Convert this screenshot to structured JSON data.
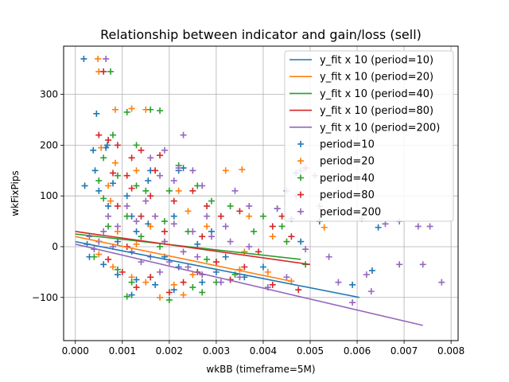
{
  "chart_data": {
    "type": "scatter",
    "title": "Relationship between indicator and gain/loss (sell)",
    "xlabel": "wkBB (timeframe=5M)",
    "ylabel": "wkFixPips",
    "xlim": [
      -0.00025,
      0.00815
    ],
    "ylim": [
      -185,
      395
    ],
    "xticks": [
      0.0,
      0.001,
      0.002,
      0.003,
      0.004,
      0.005,
      0.006,
      0.007,
      0.008
    ],
    "xtick_labels": [
      "0.000",
      "0.001",
      "0.002",
      "0.003",
      "0.004",
      "0.005",
      "0.006",
      "0.007",
      "0.008"
    ],
    "yticks": [
      -100,
      0,
      100,
      200,
      300
    ],
    "ytick_labels": [
      "−100",
      "0",
      "100",
      "200",
      "300"
    ],
    "grid": true,
    "legend_position": "top-right",
    "fit_lines": [
      {
        "name": "y_fit x 10 (period=10)",
        "color": "#1f77b4",
        "x": [
          0.0,
          0.00605
        ],
        "y": [
          10,
          -100
        ]
      },
      {
        "name": "y_fit x 10 (period=20)",
        "color": "#ff7f0e",
        "x": [
          0.0,
          0.0046
        ],
        "y": [
          20,
          -68
        ]
      },
      {
        "name": "y_fit x 10 (period=40)",
        "color": "#2ca02c",
        "x": [
          0.0,
          0.0048
        ],
        "y": [
          25,
          -25
        ]
      },
      {
        "name": "y_fit x 10 (period=80)",
        "color": "#d62728",
        "x": [
          0.0,
          0.005
        ],
        "y": [
          30,
          -35
        ]
      },
      {
        "name": "y_fit x 10 (period=200)",
        "color": "#9467bd",
        "x": [
          0.0,
          0.0074
        ],
        "y": [
          5,
          -155
        ]
      }
    ],
    "scatter_series": [
      {
        "name": "period=10",
        "color": "#1f77b4",
        "points": [
          [
            0.00018,
            370
          ],
          [
            0.00045,
            262
          ],
          [
            0.00065,
            195
          ],
          [
            0.00068,
            200
          ],
          [
            0.00038,
            190
          ],
          [
            0.00042,
            150
          ],
          [
            0.0002,
            120
          ],
          [
            0.0005,
            110
          ],
          [
            0.0011,
            100
          ],
          [
            0.0007,
            80
          ],
          [
            0.0012,
            60
          ],
          [
            0.00155,
            45
          ],
          [
            0.0021,
            60
          ],
          [
            0.0022,
            150
          ],
          [
            0.0023,
            155
          ],
          [
            0.0013,
            30
          ],
          [
            0.0009,
            10
          ],
          [
            0.00025,
            5
          ],
          [
            0.0003,
            -20
          ],
          [
            0.0006,
            -35
          ],
          [
            0.0009,
            -55
          ],
          [
            0.0013,
            -65
          ],
          [
            0.0017,
            -75
          ],
          [
            0.0012,
            -95
          ],
          [
            0.0022,
            -40
          ],
          [
            0.0021,
            -85
          ],
          [
            0.0027,
            -70
          ],
          [
            0.003,
            -50
          ],
          [
            0.0032,
            -20
          ],
          [
            0.0036,
            -60
          ],
          [
            0.004,
            -40
          ],
          [
            0.0043,
            75
          ],
          [
            0.0046,
            55
          ],
          [
            0.0048,
            10
          ],
          [
            0.0052,
            50
          ],
          [
            0.0059,
            -75
          ],
          [
            0.00645,
            38
          ],
          [
            0.00632,
            -47
          ],
          [
            0.0047,
            145
          ],
          [
            0.00155,
            130
          ],
          [
            0.0016,
            150
          ],
          [
            0.0026,
            5
          ],
          [
            0.0029,
            30
          ],
          [
            0.0019,
            -20
          ],
          [
            0.0008,
            125
          ]
        ]
      },
      {
        "name": "period=20",
        "color": "#ff7f0e",
        "points": [
          [
            0.00048,
            370
          ],
          [
            0.0005,
            345
          ],
          [
            0.00085,
            270
          ],
          [
            0.0012,
            272
          ],
          [
            0.0015,
            270
          ],
          [
            0.00055,
            195
          ],
          [
            0.00085,
            165
          ],
          [
            0.0013,
            150
          ],
          [
            0.0032,
            150
          ],
          [
            0.00355,
            152
          ],
          [
            0.0037,
            60
          ],
          [
            0.0053,
            38
          ],
          [
            0.0042,
            20
          ],
          [
            0.0046,
            -68
          ],
          [
            0.0011,
            60
          ],
          [
            0.00075,
            90
          ],
          [
            0.0016,
            40
          ],
          [
            0.0019,
            10
          ],
          [
            0.0005,
            -15
          ],
          [
            0.0008,
            -40
          ],
          [
            0.0012,
            -60
          ],
          [
            0.0015,
            -70
          ],
          [
            0.0021,
            -75
          ],
          [
            0.0025,
            -55
          ],
          [
            0.003,
            -30
          ],
          [
            0.0035,
            -45
          ],
          [
            0.0028,
            40
          ],
          [
            0.0024,
            70
          ],
          [
            0.0022,
            110
          ],
          [
            0.0009,
            30
          ],
          [
            0.0036,
            -10
          ],
          [
            0.0041,
            -50
          ],
          [
            0.0018,
            -100
          ],
          [
            0.0013,
            5
          ],
          [
            0.0007,
            120
          ],
          [
            0.0023,
            -95
          ]
        ]
      },
      {
        "name": "period=40",
        "color": "#2ca02c",
        "points": [
          [
            0.00075,
            345
          ],
          [
            0.0008,
            220
          ],
          [
            0.0011,
            265
          ],
          [
            0.0016,
            270
          ],
          [
            0.0018,
            268
          ],
          [
            0.0013,
            200
          ],
          [
            0.0006,
            175
          ],
          [
            0.0005,
            130
          ],
          [
            0.0009,
            140
          ],
          [
            0.0015,
            110
          ],
          [
            0.0022,
            160
          ],
          [
            0.002,
            110
          ],
          [
            0.0026,
            120
          ],
          [
            0.0029,
            90
          ],
          [
            0.0033,
            80
          ],
          [
            0.0011,
            60
          ],
          [
            0.0007,
            40
          ],
          [
            0.0014,
            20
          ],
          [
            0.0018,
            0
          ],
          [
            0.0004,
            -20
          ],
          [
            0.0009,
            -45
          ],
          [
            0.0012,
            -70
          ],
          [
            0.0016,
            -60
          ],
          [
            0.0011,
            -98
          ],
          [
            0.002,
            -105
          ],
          [
            0.0025,
            -80
          ],
          [
            0.003,
            -70
          ],
          [
            0.0034,
            -55
          ],
          [
            0.0038,
            30
          ],
          [
            0.004,
            60
          ],
          [
            0.0045,
            10
          ],
          [
            0.0049,
            -35
          ],
          [
            0.0028,
            -25
          ],
          [
            0.0024,
            30
          ],
          [
            0.0019,
            50
          ],
          [
            0.0006,
            95
          ],
          [
            0.0013,
            120
          ],
          [
            0.0027,
            -90
          ],
          [
            0.0044,
            40
          ]
        ]
      },
      {
        "name": "period=80",
        "color": "#d62728",
        "points": [
          [
            0.0006,
            345
          ],
          [
            0.0005,
            220
          ],
          [
            0.0007,
            210
          ],
          [
            0.0009,
            200
          ],
          [
            0.0012,
            175
          ],
          [
            0.0014,
            190
          ],
          [
            0.0018,
            180
          ],
          [
            0.0017,
            150
          ],
          [
            0.0011,
            140
          ],
          [
            0.0008,
            145
          ],
          [
            0.0025,
            110
          ],
          [
            0.0028,
            80
          ],
          [
            0.0031,
            60
          ],
          [
            0.0042,
            40
          ],
          [
            0.00475,
            -85
          ],
          [
            0.0046,
            20
          ],
          [
            0.0044,
            60
          ],
          [
            0.0009,
            80
          ],
          [
            0.0014,
            60
          ],
          [
            0.0019,
            30
          ],
          [
            0.0005,
            10
          ],
          [
            0.0007,
            -25
          ],
          [
            0.001,
            -50
          ],
          [
            0.0013,
            -80
          ],
          [
            0.0016,
            -60
          ],
          [
            0.002,
            -90
          ],
          [
            0.0023,
            -70
          ],
          [
            0.0026,
            -50
          ],
          [
            0.003,
            -30
          ],
          [
            0.0033,
            -65
          ],
          [
            0.0036,
            -40
          ],
          [
            0.0039,
            -10
          ],
          [
            0.0021,
            90
          ],
          [
            0.0016,
            100
          ],
          [
            0.0012,
            115
          ],
          [
            0.0049,
            155
          ],
          [
            0.0042,
            -75
          ],
          [
            0.0027,
            20
          ],
          [
            0.0011,
            0
          ],
          [
            0.0035,
            70
          ]
        ]
      },
      {
        "name": "period=200",
        "color": "#9467bd",
        "points": [
          [
            0.00065,
            370
          ],
          [
            0.0023,
            220
          ],
          [
            0.0019,
            190
          ],
          [
            0.0016,
            175
          ],
          [
            0.0022,
            155
          ],
          [
            0.0025,
            150
          ],
          [
            0.0027,
            120
          ],
          [
            0.0021,
            130
          ],
          [
            0.0018,
            140
          ],
          [
            0.0034,
            110
          ],
          [
            0.0037,
            80
          ],
          [
            0.0043,
            75
          ],
          [
            0.0045,
            110
          ],
          [
            0.0048,
            150
          ],
          [
            0.0051,
            140
          ],
          [
            0.0047,
            100
          ],
          [
            0.0052,
            80
          ],
          [
            0.0057,
            65
          ],
          [
            0.0061,
            55
          ],
          [
            0.0066,
            45
          ],
          [
            0.0069,
            50
          ],
          [
            0.0073,
            40
          ],
          [
            0.00755,
            40
          ],
          [
            0.0069,
            -35
          ],
          [
            0.0074,
            -35
          ],
          [
            0.0078,
            -70
          ],
          [
            0.0062,
            -55
          ],
          [
            0.0063,
            -88
          ],
          [
            0.0059,
            -110
          ],
          [
            0.0056,
            -70
          ],
          [
            0.0054,
            -20
          ],
          [
            0.0049,
            -5
          ],
          [
            0.0045,
            -60
          ],
          [
            0.0041,
            -80
          ],
          [
            0.0035,
            -60
          ],
          [
            0.0031,
            -70
          ],
          [
            0.0027,
            -55
          ],
          [
            0.0024,
            -40
          ],
          [
            0.002,
            -30
          ],
          [
            0.0016,
            -20
          ],
          [
            0.0012,
            -10
          ],
          [
            0.0008,
            0
          ],
          [
            0.0005,
            10
          ],
          [
            0.0003,
            20
          ],
          [
            0.0009,
            40
          ],
          [
            0.0013,
            50
          ],
          [
            0.0017,
            60
          ],
          [
            0.0021,
            45
          ],
          [
            0.0025,
            30
          ],
          [
            0.0029,
            20
          ],
          [
            0.0033,
            10
          ],
          [
            0.0037,
            0
          ],
          [
            0.0011,
            80
          ],
          [
            0.0015,
            90
          ],
          [
            0.0007,
            60
          ],
          [
            0.0019,
            10
          ],
          [
            0.0023,
            -10
          ],
          [
            0.0004,
            -5
          ],
          [
            0.0014,
            -30
          ],
          [
            0.0028,
            60
          ],
          [
            0.0032,
            40
          ],
          [
            0.0006,
            30
          ],
          [
            0.0018,
            -50
          ],
          [
            0.0026,
            -20
          ]
        ]
      }
    ]
  }
}
